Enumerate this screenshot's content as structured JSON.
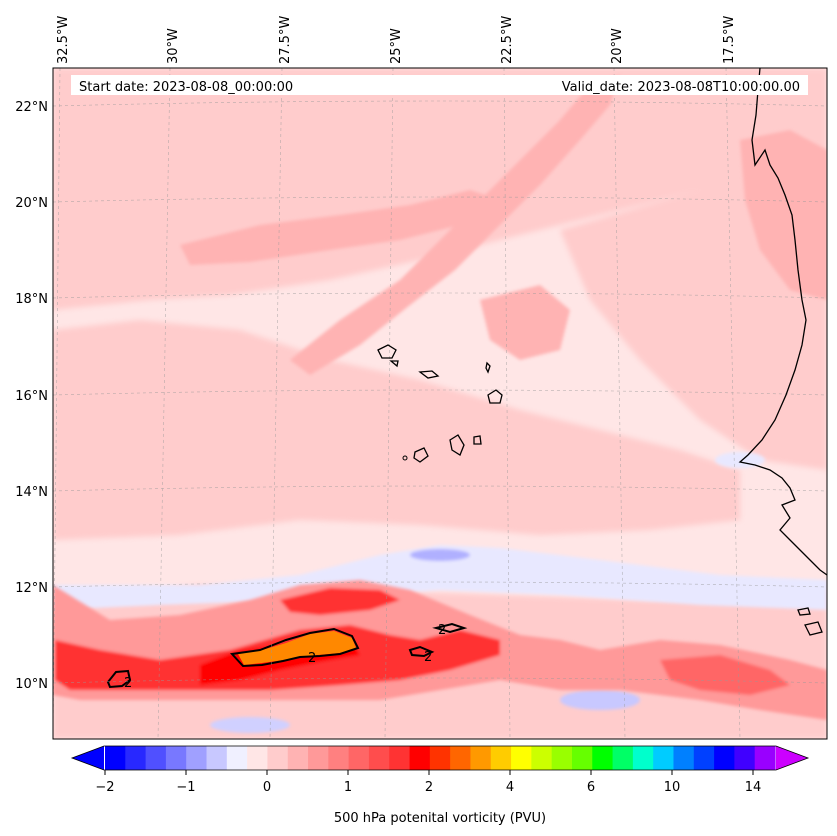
{
  "map": {
    "start_date": "Start date: 2023-08-08_00:00:00",
    "valid_date": "Valid_date: 2023-08-08T10:00:00.00",
    "lon_labels": [
      "32.5°W",
      "30°W",
      "27.5°W",
      "25°W",
      "22.5°W",
      "20°W",
      "17.5°W"
    ],
    "lat_labels": [
      "22°N",
      "20°N",
      "18°N",
      "16°N",
      "14°N",
      "12°N",
      "10°N"
    ],
    "contour_label": "2"
  },
  "colorbar": {
    "tick_labels": [
      "−2",
      "−1",
      "0",
      "1",
      "2",
      "4",
      "6",
      "10",
      "14"
    ],
    "label": "500 hPa potenital vorticity (PVU)",
    "colors": [
      "#0000ff",
      "#2828ff",
      "#5050ff",
      "#7878ff",
      "#a0a0ff",
      "#c8c8ff",
      "#f0f0ff",
      "#ffe6e6",
      "#ffcccc",
      "#ffb3b3",
      "#ff9999",
      "#ff8080",
      "#ff6666",
      "#ff4d4d",
      "#ff3333",
      "#ff0000",
      "#ff3300",
      "#ff6600",
      "#ff9900",
      "#ffcc00",
      "#ffff00",
      "#ccff00",
      "#99ff00",
      "#66ff00",
      "#00ff00",
      "#00ff66",
      "#00ffcc",
      "#00ccff",
      "#0080ff",
      "#0040ff",
      "#0000ff",
      "#4000ff",
      "#9900ff"
    ],
    "extend_min_color": "#0000ff",
    "extend_max_color": "#cc00ff"
  },
  "colors": {
    "background_pv": "#ffe6e6",
    "light_band": "#ffcccc",
    "mid_band": "#ffb3b3",
    "strong_red": "#ff3333",
    "max_red": "#ff0000",
    "orange": "#ff8800",
    "negative": "#8080ff",
    "coast": "#000000"
  }
}
